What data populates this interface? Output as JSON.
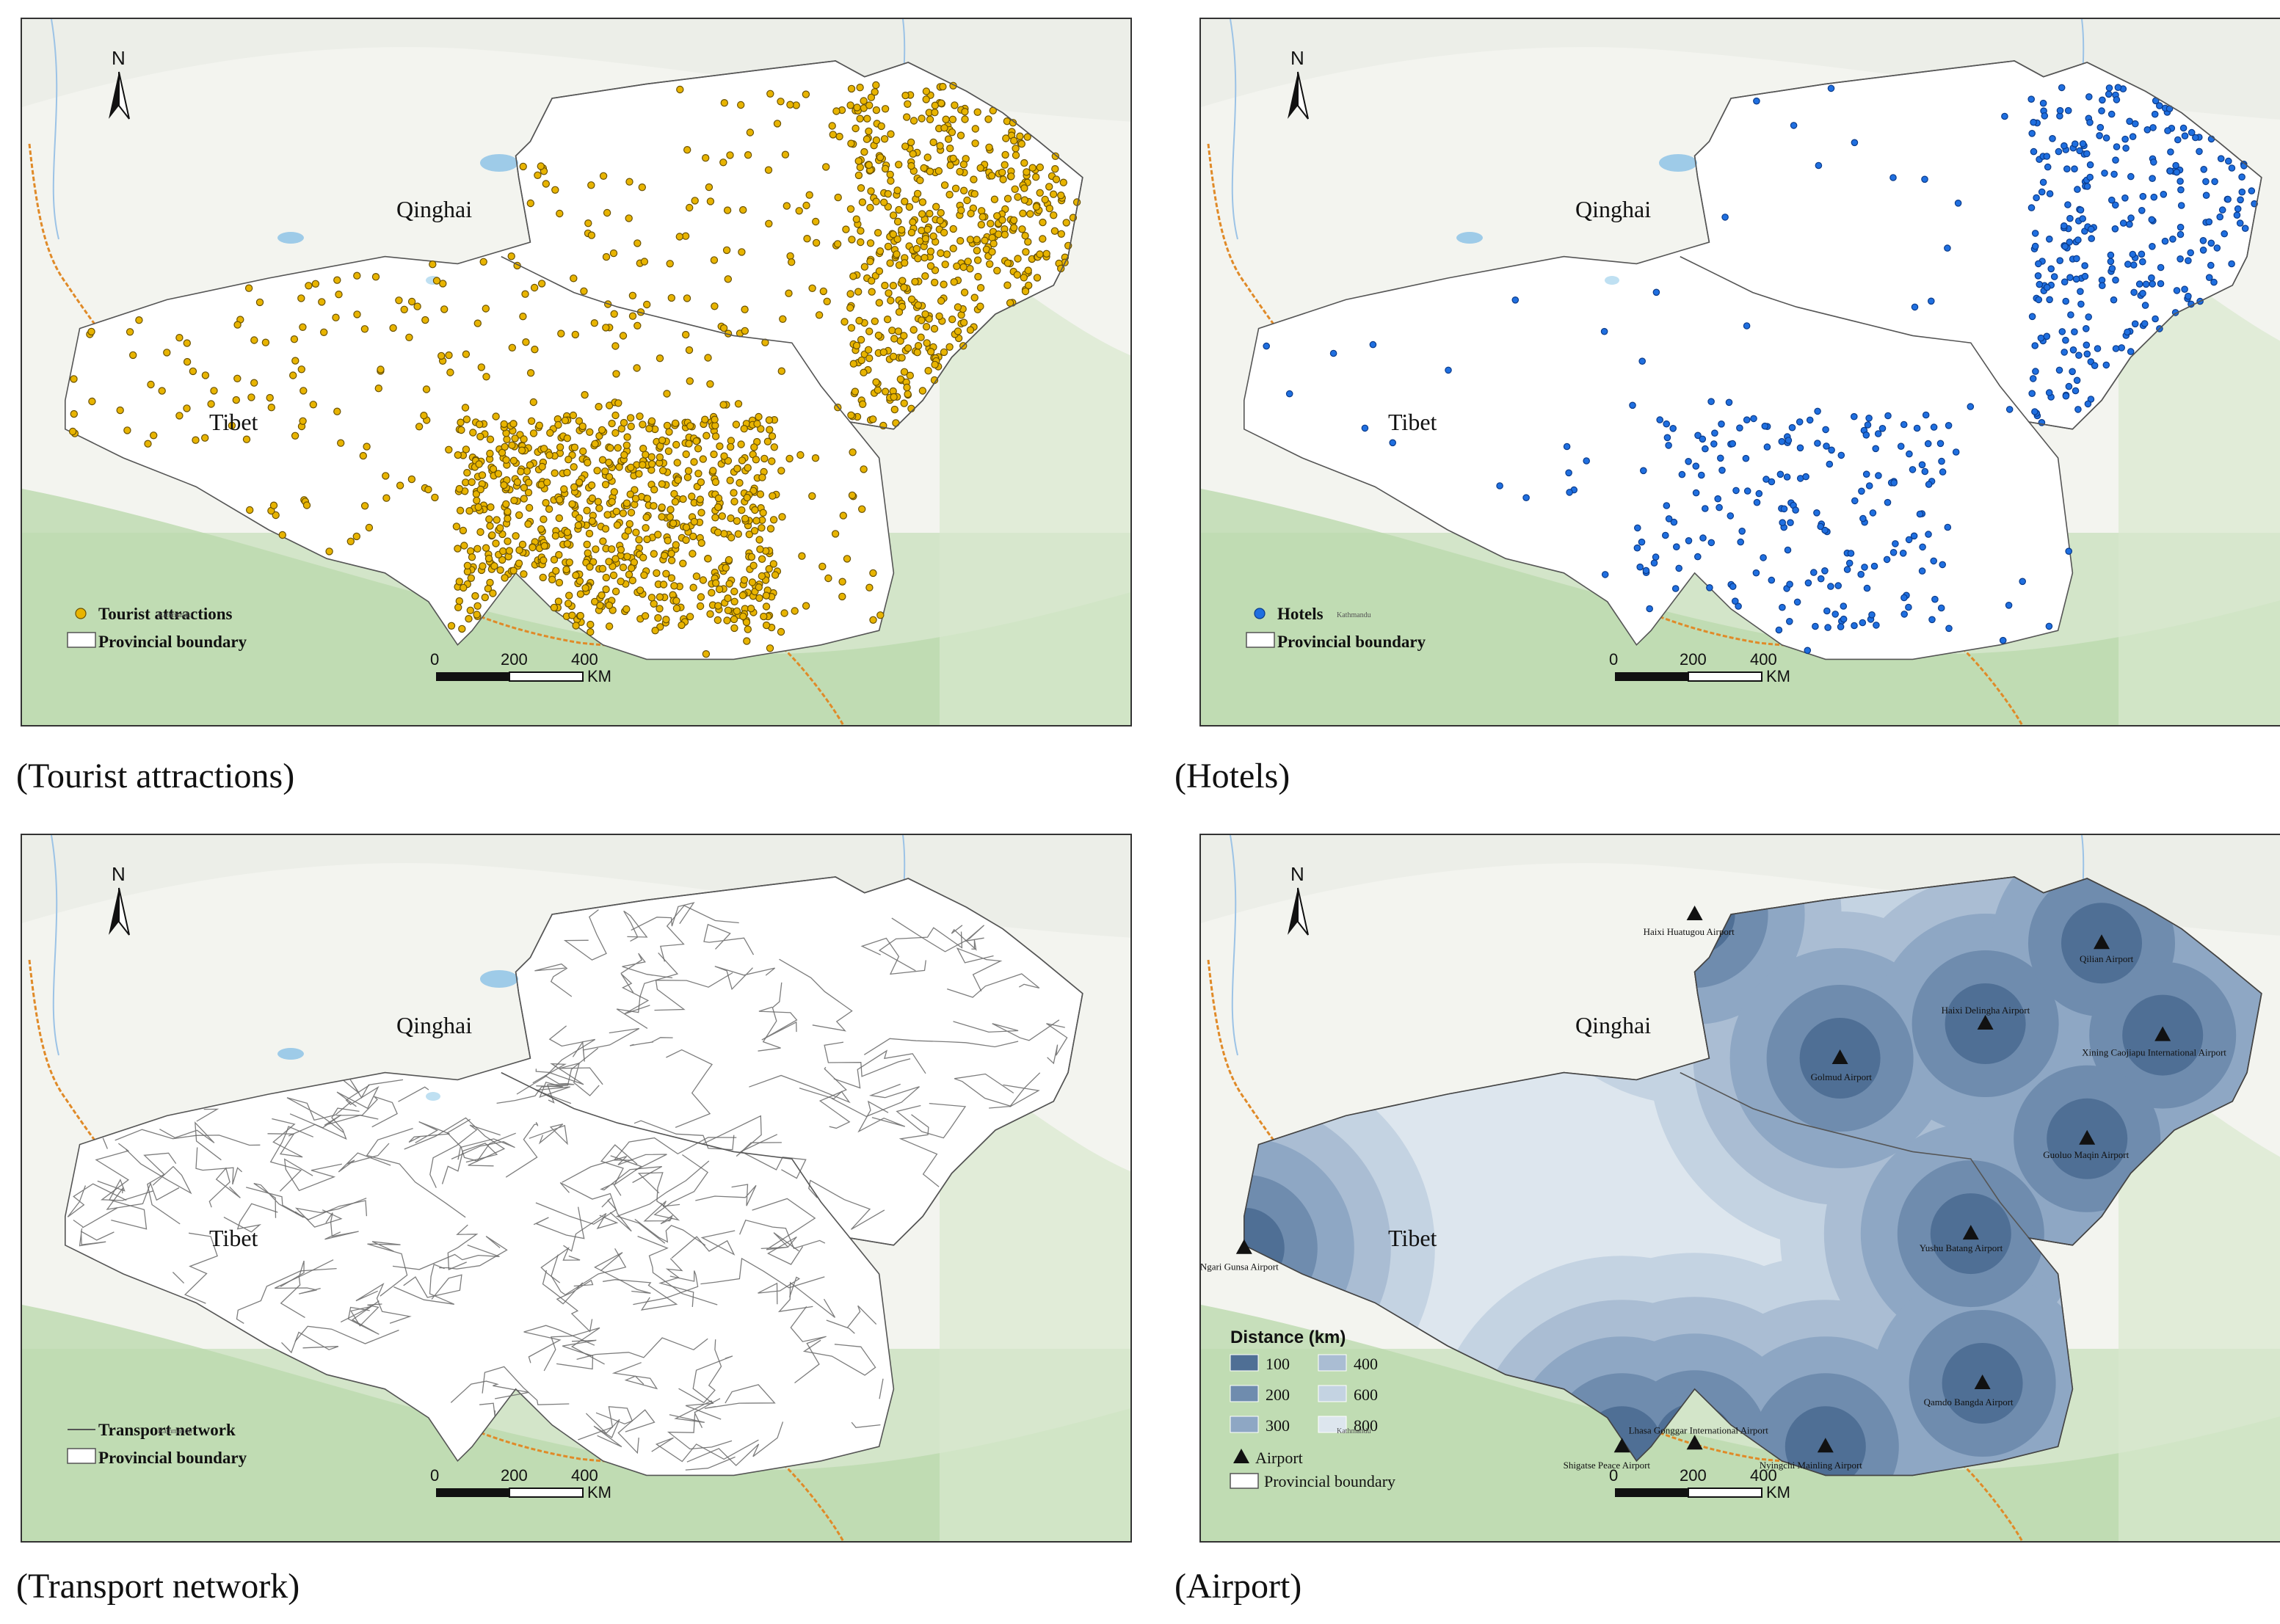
{
  "panels": [
    {
      "caption": "(Tourist attractions)",
      "north": "N",
      "labels": {
        "qinghai": "Qinghai",
        "tibet": "Tibet"
      },
      "legend": {
        "item1": "Tourist attractions",
        "item2": "Provincial boundary"
      },
      "colors": {
        "points": "#e8b400",
        "point_outline": "#6b5200"
      },
      "scale": {
        "ticks": [
          "0",
          "200",
          "400"
        ],
        "unit": "KM"
      }
    },
    {
      "caption": "(Hotels)",
      "north": "N",
      "labels": {
        "qinghai": "Qinghai",
        "tibet": "Tibet"
      },
      "legend": {
        "item1": "Hotels",
        "item2": "Provincial boundary"
      },
      "colors": {
        "points": "#1f6fe0",
        "point_outline": "#0b3b8a"
      },
      "scale": {
        "ticks": [
          "0",
          "200",
          "400"
        ],
        "unit": "KM"
      }
    },
    {
      "caption": "(Transport network)",
      "north": "N",
      "labels": {
        "qinghai": "Qinghai",
        "tibet": "Tibet"
      },
      "legend": {
        "item1": "Transport network",
        "item2": "Provincial boundary"
      },
      "colors": {
        "lines": "#666666"
      },
      "scale": {
        "ticks": [
          "0",
          "200",
          "400"
        ],
        "unit": "KM"
      }
    },
    {
      "caption": "(Airport)",
      "north": "N",
      "labels": {
        "qinghai": "Qinghai",
        "tibet": "Tibet"
      },
      "legend": {
        "title": "Distance (km)",
        "classes": [
          "100",
          "200",
          "300",
          "400",
          "600",
          "800"
        ],
        "class_colors": [
          "#4f6f95",
          "#6f8cae",
          "#8ea7c4",
          "#aabdd3",
          "#c4d3e2",
          "#dde6ee"
        ],
        "airport": "Airport",
        "boundary": "Provincial boundary"
      },
      "airports": [
        "Haixi Huatugou Airport",
        "Golmud Airport",
        "Haixi Delingha Airport",
        "Qilian Airport",
        "Xining Caojiapu International Airport",
        "Guoluo Maqin Airport",
        "Yushu Batang Airport",
        "Ngari Gunsa Airport",
        "Qamdo Bangda Airport",
        "Lhasa Gonggar International Airport",
        "Shigatse Peace Airport",
        "Nyingchi Mainling Airport"
      ],
      "scale": {
        "ticks": [
          "0",
          "200",
          "400"
        ],
        "unit": "KM"
      }
    }
  ]
}
